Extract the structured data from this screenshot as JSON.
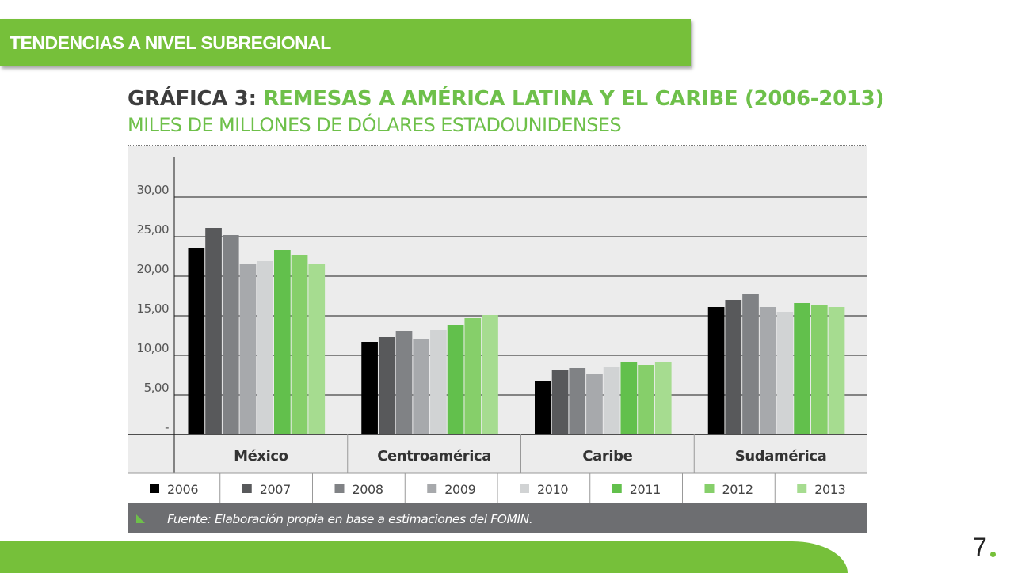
{
  "header": {
    "title": "TENDENCIAS A NIVEL SUBREGIONAL"
  },
  "page_number": "7",
  "colors": {
    "accent": "#76c03a",
    "title_gray": "#3d3d3d",
    "title_green": "#6ec04a",
    "plot_bg": "#ececec",
    "source_bg": "#6d6e71"
  },
  "chart_data": {
    "type": "bar",
    "title_prefix": "GRÁFICA 3:",
    "title": "REMESAS A AMÉRICA LATINA Y EL CARIBE (2006-2013)",
    "subtitle": "MILES DE MILLONES DE DÓLARES ESTADOUNIDENSES",
    "categories": [
      "México",
      "Centroamérica",
      "Caribe",
      "Sudamérica"
    ],
    "y_ticks": [
      "-",
      "5,00",
      "10,00",
      "15,00",
      "20,00",
      "25,00",
      "30,00"
    ],
    "ylim": [
      0,
      35
    ],
    "grid": true,
    "legend_position": "bottom",
    "series": [
      {
        "name": "2006",
        "color": "#000000",
        "values": [
          23.6,
          11.7,
          6.7,
          16.1
        ]
      },
      {
        "name": "2007",
        "color": "#58595b",
        "values": [
          26.1,
          12.3,
          8.2,
          17.0
        ]
      },
      {
        "name": "2008",
        "color": "#808285",
        "values": [
          25.2,
          13.1,
          8.4,
          17.7
        ]
      },
      {
        "name": "2009",
        "color": "#a7a9ac",
        "values": [
          21.5,
          12.1,
          7.7,
          16.1
        ]
      },
      {
        "name": "2010",
        "color": "#d1d3d4",
        "values": [
          21.9,
          13.2,
          8.5,
          15.5
        ]
      },
      {
        "name": "2011",
        "color": "#62c04c",
        "values": [
          23.3,
          13.8,
          9.2,
          16.6
        ]
      },
      {
        "name": "2012",
        "color": "#86cf6a",
        "values": [
          22.7,
          14.7,
          8.8,
          16.3
        ]
      },
      {
        "name": "2013",
        "color": "#a6dc90",
        "values": [
          21.5,
          15.1,
          9.2,
          16.1
        ]
      }
    ],
    "source": "Fuente: Elaboración propia en base a estimaciones del FOMIN."
  }
}
